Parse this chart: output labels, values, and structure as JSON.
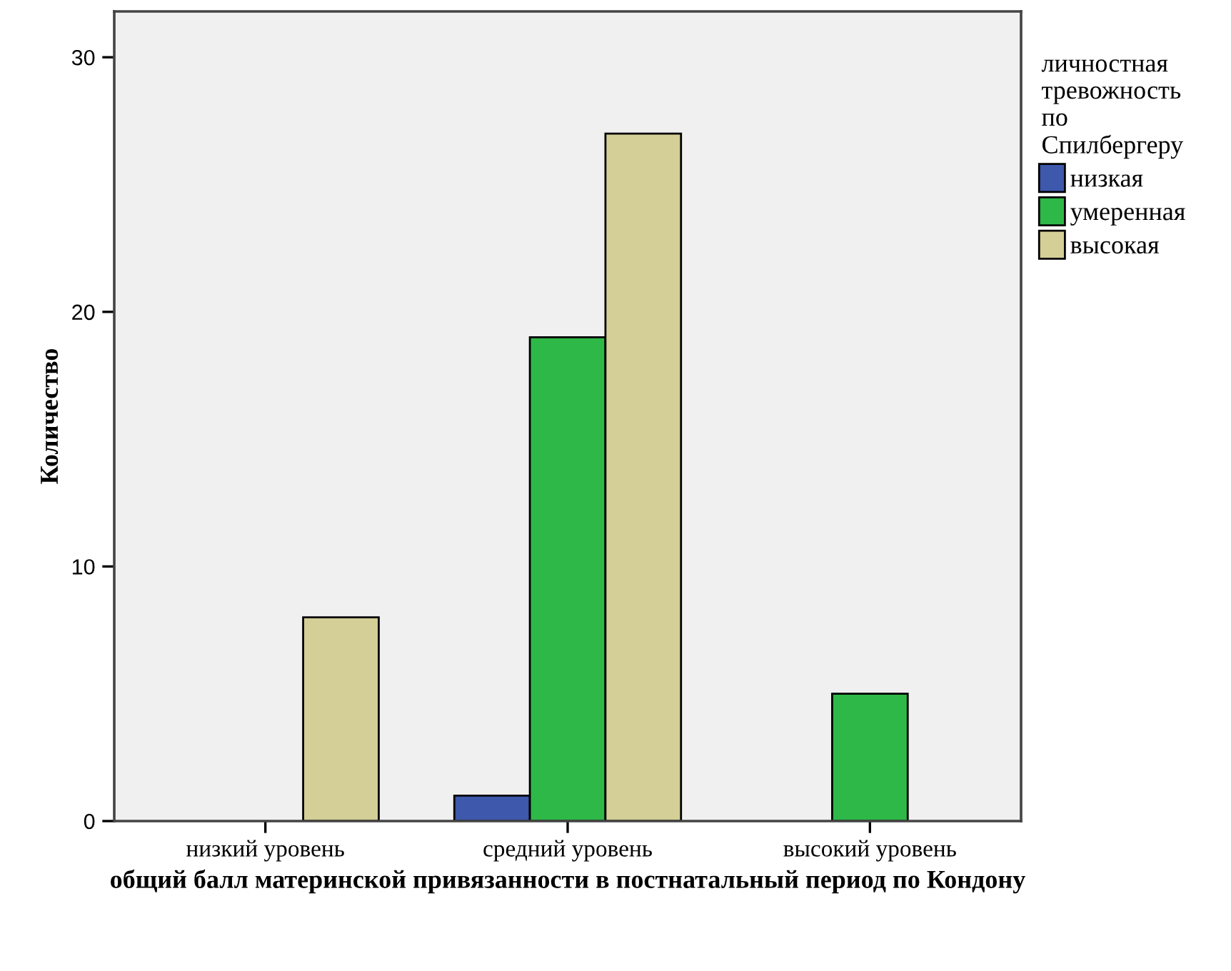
{
  "chart_data": {
    "type": "bar",
    "categories": [
      "низкий уровень",
      "средний уровень",
      "высокий уровень"
    ],
    "series": [
      {
        "name": "низкая",
        "color": "#3e58ac",
        "values": [
          null,
          1,
          null
        ]
      },
      {
        "name": "умеренная",
        "color": "#2eb848",
        "values": [
          null,
          19,
          5
        ]
      },
      {
        "name": "высокая",
        "color": "#d4cf96",
        "values": [
          8,
          27,
          null
        ]
      }
    ],
    "xlabel": "общий балл материнской привязанности в постнатальный период по Кондону",
    "ylabel": "Количество",
    "legend_title": "личностная\nтревожность\nпо\nСпилбергеру",
    "legend": "right",
    "ylim": [
      0,
      31.8
    ],
    "yticks": [
      0,
      10,
      20,
      30
    ],
    "grid": false
  }
}
